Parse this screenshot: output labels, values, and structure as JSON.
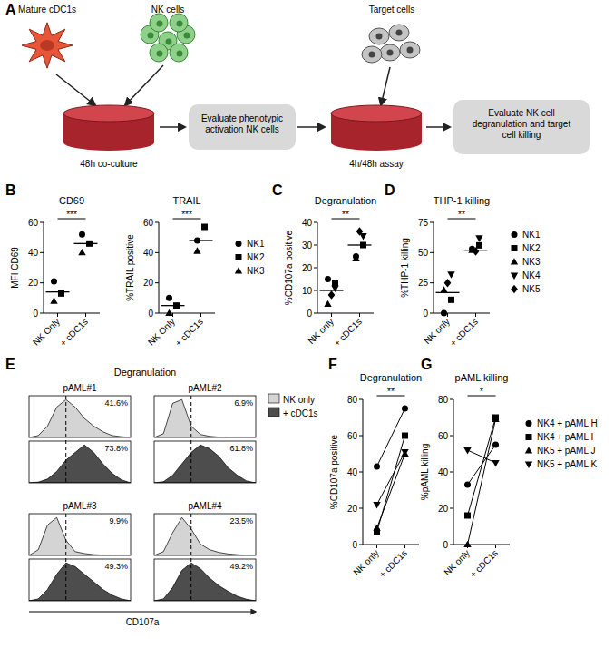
{
  "panel_labels": [
    "A",
    "B",
    "C",
    "D",
    "E",
    "F",
    "G"
  ],
  "diagram": {
    "cdc1_label": "Mature cDC1s",
    "nk_label": "NK cells",
    "target_label": "Target cells",
    "coculture_label": "48h co-culture",
    "assay_label": "4h/48h assay",
    "step1": "Evaluate phenotypic activation NK cells",
    "step2": "Evaluate NK cell degranulation and target cell killing"
  },
  "chart_data": [
    {
      "type": "dot_plot",
      "title": "CD69",
      "y_label": "MFI CD69",
      "categories": [
        "NK Only",
        "+ cDC1s"
      ],
      "ylim": [
        0,
        60
      ],
      "yticks": [
        0,
        20,
        40,
        60
      ],
      "significance": "***",
      "means": [
        14,
        46
      ],
      "series": [
        {
          "name": "NK1",
          "marker": "circle",
          "values": [
            21,
            52
          ]
        },
        {
          "name": "NK2",
          "marker": "square",
          "values": [
            13,
            46
          ]
        },
        {
          "name": "NK3",
          "marker": "triangle",
          "values": [
            8,
            40
          ]
        }
      ]
    },
    {
      "type": "dot_plot",
      "title": "TRAIL",
      "y_label": "%TRAIL positive",
      "categories": [
        "NK Only",
        "+ cDC1s"
      ],
      "ylim": [
        0,
        60
      ],
      "yticks": [
        0,
        20,
        40,
        60
      ],
      "significance": "***",
      "means": [
        5,
        48
      ],
      "legend": "right",
      "series": [
        {
          "name": "NK1",
          "marker": "circle",
          "values": [
            10,
            48
          ]
        },
        {
          "name": "NK2",
          "marker": "square",
          "values": [
            5,
            57
          ]
        },
        {
          "name": "NK3",
          "marker": "triangle",
          "values": [
            0,
            41
          ]
        }
      ]
    },
    {
      "type": "dot_plot",
      "title": "Degranulation",
      "y_label": "%CD107a positive",
      "categories": [
        "NK only",
        "+ cDC1s"
      ],
      "ylim": [
        0,
        40
      ],
      "yticks": [
        0,
        10,
        20,
        30,
        40
      ],
      "significance": "**",
      "means": [
        10,
        30
      ],
      "series": [
        {
          "name": "NK1",
          "marker": "circle",
          "values": [
            15,
            25
          ]
        },
        {
          "name": "NK2",
          "marker": "square",
          "values": [
            13,
            30
          ]
        },
        {
          "name": "NK3",
          "marker": "triangle",
          "values": [
            4,
            24
          ]
        },
        {
          "name": "NK4",
          "marker": "triangle-down",
          "values": [
            11,
            34
          ]
        },
        {
          "name": "NK5",
          "marker": "diamond",
          "values": [
            8,
            36
          ]
        }
      ]
    },
    {
      "type": "dot_plot",
      "title": "THP-1 killing",
      "y_label": "%THP-1 killing",
      "categories": [
        "NK only",
        "+ cDC1s"
      ],
      "ylim": [
        0,
        75
      ],
      "yticks": [
        0,
        25,
        50,
        75
      ],
      "significance": "**",
      "means": [
        17,
        52
      ],
      "legend": "right",
      "series": [
        {
          "name": "NK1",
          "marker": "circle",
          "values": [
            0,
            53
          ]
        },
        {
          "name": "NK2",
          "marker": "square",
          "values": [
            11,
            56
          ]
        },
        {
          "name": "NK3",
          "marker": "triangle",
          "values": [
            19,
            52
          ]
        },
        {
          "name": "NK4",
          "marker": "triangle-down",
          "values": [
            32,
            62
          ]
        },
        {
          "name": "NK5",
          "marker": "diamond",
          "values": [
            25,
            51
          ]
        }
      ]
    },
    {
      "type": "histogram_overlay",
      "title": "Degranulation",
      "x_label": "CD107a",
      "legend": "right",
      "tick_labels": false,
      "x": [
        0,
        1,
        2,
        3,
        4,
        5,
        6,
        7,
        8,
        9,
        10,
        11
      ],
      "xlim": [
        0,
        11
      ],
      "ylim": [
        0,
        1.1
      ],
      "gate": 4,
      "series": [
        {
          "name": "NK only",
          "color": "#d4d4d4"
        },
        {
          "name": "+ cDC1s",
          "color": "#4d4d4d"
        }
      ],
      "samples": [
        {
          "title": "pAML#1",
          "percent": [
            41.6,
            73.8
          ],
          "percent_labels": [
            "41.6%",
            "73.8%"
          ],
          "values": [
            [
              0,
              0.05,
              0.3,
              0.8,
              1,
              0.8,
              0.5,
              0.3,
              0.15,
              0.05,
              0.02,
              0
            ],
            [
              0,
              0.02,
              0.1,
              0.3,
              0.6,
              0.8,
              1,
              0.8,
              0.5,
              0.25,
              0.08,
              0
            ]
          ]
        },
        {
          "title": "pAML#2",
          "percent": [
            6.9,
            61.8
          ],
          "percent_labels": [
            "6.9%",
            "61.8%"
          ],
          "values": [
            [
              0,
              0.1,
              0.9,
              1,
              0.3,
              0.08,
              0.03,
              0.01,
              0,
              0,
              0,
              0
            ],
            [
              0,
              0.03,
              0.2,
              0.5,
              0.8,
              1,
              0.9,
              0.7,
              0.4,
              0.2,
              0.05,
              0
            ]
          ]
        },
        {
          "title": "pAML#3",
          "percent": [
            9.9,
            49.3
          ],
          "percent_labels": [
            "9.9%",
            "49.3%"
          ],
          "values": [
            [
              0,
              0.15,
              0.8,
              1,
              0.4,
              0.1,
              0.05,
              0.02,
              0.01,
              0,
              0,
              0
            ],
            [
              0,
              0.05,
              0.3,
              0.7,
              1,
              0.9,
              0.7,
              0.5,
              0.3,
              0.15,
              0.05,
              0
            ]
          ]
        },
        {
          "title": "pAML#4",
          "percent": [
            23.5,
            49.2
          ],
          "percent_labels": [
            "23.5%",
            "49.2%"
          ],
          "values": [
            [
              0,
              0.1,
              0.6,
              1,
              0.7,
              0.3,
              0.15,
              0.08,
              0.04,
              0.02,
              0,
              0
            ],
            [
              0,
              0.05,
              0.35,
              0.8,
              1,
              0.85,
              0.6,
              0.4,
              0.25,
              0.12,
              0.04,
              0
            ]
          ]
        }
      ]
    },
    {
      "type": "paired_line",
      "title": "Degranulation",
      "y_label": "%CD107a positive",
      "categories": [
        "NK only",
        "+ cDC1s"
      ],
      "ylim": [
        0,
        80
      ],
      "yticks": [
        0,
        20,
        40,
        60,
        80
      ],
      "significance": "**",
      "series": [
        {
          "name": "NK4 + pAML H",
          "marker": "circle",
          "values": [
            43,
            75
          ]
        },
        {
          "name": "NK4 + pAML I",
          "marker": "square",
          "values": [
            7,
            60
          ]
        },
        {
          "name": "NK5 + pAML J",
          "marker": "triangle",
          "values": [
            9,
            50
          ]
        },
        {
          "name": "NK5 + pAML K",
          "marker": "triangle-down",
          "values": [
            22,
            51
          ]
        }
      ]
    },
    {
      "type": "paired_line",
      "title": "pAML killing",
      "y_label": "%pAML killing",
      "categories": [
        "NK only",
        "+ cDC1s"
      ],
      "ylim": [
        0,
        80
      ],
      "yticks": [
        0,
        20,
        40,
        60,
        80
      ],
      "significance": "*",
      "legend": "right",
      "series": [
        {
          "name": "NK4 + pAML H",
          "marker": "circle",
          "values": [
            33,
            55
          ]
        },
        {
          "name": "NK4 + pAML I",
          "marker": "square",
          "values": [
            16,
            70
          ]
        },
        {
          "name": "NK5 + pAML J",
          "marker": "triangle",
          "values": [
            0,
            69
          ]
        },
        {
          "name": "NK5 + pAML K",
          "marker": "triangle-down",
          "values": [
            52,
            45
          ]
        }
      ]
    }
  ]
}
